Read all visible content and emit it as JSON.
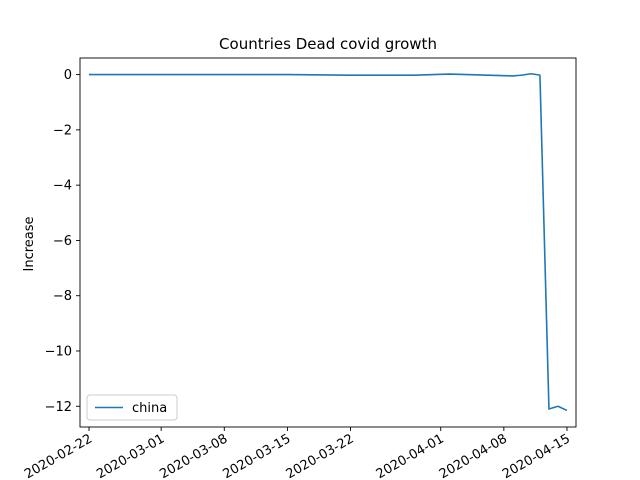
{
  "chart_data": {
    "type": "line",
    "title": "Countries Dead covid growth",
    "xlabel": "",
    "ylabel": "Increase",
    "x_type": "date",
    "xlim": [
      "2020-02-21",
      "2020-04-16"
    ],
    "ylim": [
      -12.75,
      0.6
    ],
    "x_ticks": [
      "2020-02-22",
      "2020-03-01",
      "2020-03-08",
      "2020-03-15",
      "2020-03-22",
      "2020-04-01",
      "2020-04-08",
      "2020-04-15"
    ],
    "y_ticks": [
      0,
      -2,
      -4,
      -6,
      -8,
      -10,
      -12
    ],
    "grid": false,
    "legend_position": "lower-left",
    "series": [
      {
        "name": "china",
        "color": "#1f77b4",
        "points": [
          {
            "x": "2020-02-22",
            "y": 0.0
          },
          {
            "x": "2020-03-01",
            "y": 0.0
          },
          {
            "x": "2020-03-08",
            "y": 0.0
          },
          {
            "x": "2020-03-15",
            "y": 0.0
          },
          {
            "x": "2020-03-22",
            "y": -0.02
          },
          {
            "x": "2020-03-29",
            "y": -0.02
          },
          {
            "x": "2020-04-02",
            "y": 0.02
          },
          {
            "x": "2020-04-09",
            "y": -0.05
          },
          {
            "x": "2020-04-10",
            "y": -0.02
          },
          {
            "x": "2020-04-11",
            "y": 0.03
          },
          {
            "x": "2020-04-12",
            "y": -0.02
          },
          {
            "x": "2020-04-13",
            "y": -12.1
          },
          {
            "x": "2020-04-14",
            "y": -12.0
          },
          {
            "x": "2020-04-15",
            "y": -12.15
          }
        ]
      }
    ]
  }
}
